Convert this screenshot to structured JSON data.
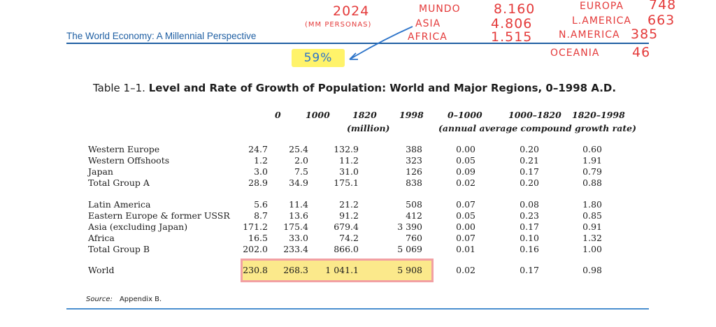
{
  "header": {
    "title": "The World Economy: A Millennial Perspective"
  },
  "annotations": {
    "year": "2024",
    "unit_note": "(MM PERSONAS)",
    "mundo": "MUNDO",
    "mundo_value": "8.160",
    "asia": "ASIA",
    "asia_value": "4.806",
    "africa": "AFRICA",
    "africa_value": "1.515",
    "europa": "EUROPA",
    "europa_value": "748",
    "lamerica": "L.AMERICA",
    "lamerica_value": "663",
    "namerica": "N.AMERICA",
    "namerica_value": "385",
    "oceania": "OCEANIA",
    "oceania_value": "46",
    "percent_note": "59%"
  },
  "table": {
    "caption_prefix": "Table 1–1.",
    "caption_title": "Level and Rate of Growth of Population: World and Major Regions, 0–1998 A.D.",
    "columns": [
      "0",
      "1000",
      "1820",
      "1998",
      "0–1000",
      "1000–1820",
      "1820–1998"
    ],
    "level_unit": "(million)",
    "rate_unit": "(annual average compound growth rate)",
    "rows": [
      {
        "region": "Western Europe",
        "values": [
          "24.7",
          "25.4",
          "132.9",
          "388",
          "0.00",
          "0.20",
          "0.60"
        ]
      },
      {
        "region": "Western Offshoots",
        "values": [
          "1.2",
          "2.0",
          "11.2",
          "323",
          "0.05",
          "0.21",
          "1.91"
        ]
      },
      {
        "region": "Japan",
        "values": [
          "3.0",
          "7.5",
          "31.0",
          "126",
          "0.09",
          "0.17",
          "0.79"
        ]
      },
      {
        "region": "Total Group A",
        "values": [
          "28.9",
          "34.9",
          "175.1",
          "838",
          "0.02",
          "0.20",
          "0.88"
        ]
      },
      {
        "region": "Latin America",
        "values": [
          "5.6",
          "11.4",
          "21.2",
          "508",
          "0.07",
          "0.08",
          "1.80"
        ]
      },
      {
        "region": "Eastern Europe & former USSR",
        "values": [
          "8.7",
          "13.6",
          "91.2",
          "412",
          "0.05",
          "0.23",
          "0.85"
        ]
      },
      {
        "region": "Asia (excluding Japan)",
        "values": [
          "171.2",
          "175.4",
          "679.4",
          "3 390",
          "0.00",
          "0.17",
          "0.91"
        ]
      },
      {
        "region": "Africa",
        "values": [
          "16.5",
          "33.0",
          "74.2",
          "760",
          "0.07",
          "0.10",
          "1.32"
        ]
      },
      {
        "region": "Total Group B",
        "values": [
          "202.0",
          "233.4",
          "866.0",
          "5 069",
          "0.01",
          "0.16",
          "1.00"
        ]
      },
      {
        "region": "World",
        "values": [
          "230.8",
          "268.3",
          "1 041.1",
          "5 908",
          "0.02",
          "0.17",
          "0.98"
        ]
      }
    ],
    "source_label": "Source:",
    "source_value": "Appendix B."
  }
}
